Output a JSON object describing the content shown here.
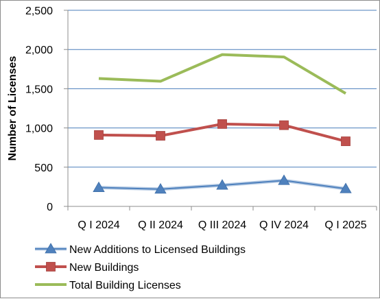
{
  "chart_data": {
    "type": "line",
    "title": "",
    "xlabel": "",
    "ylabel": "Number of Licenses",
    "ylim": [
      0,
      2500
    ],
    "yticks": [
      0,
      500,
      1000,
      1500,
      2000,
      2500
    ],
    "ytick_labels": [
      "0",
      "500",
      "1,000",
      "1,500",
      "2,000",
      "2,500"
    ],
    "categories": [
      "Q I 2024",
      "Q II 2024",
      "Q III 2024",
      "Q IV 2024",
      "Q I 2025"
    ],
    "grid": "horizontal",
    "legend_position": "bottom",
    "series": [
      {
        "name": "New Additions to Licensed Buildings",
        "values": [
          240,
          220,
          270,
          330,
          225
        ],
        "color": "#4f81bd",
        "marker": "triangle"
      },
      {
        "name": "New Buildings",
        "values": [
          910,
          900,
          1050,
          1035,
          830
        ],
        "color": "#c0504d",
        "marker": "square"
      },
      {
        "name": "Total Building Licenses",
        "values": [
          1630,
          1595,
          1935,
          1905,
          1440
        ],
        "color": "#9bbb59",
        "marker": "none"
      }
    ]
  }
}
